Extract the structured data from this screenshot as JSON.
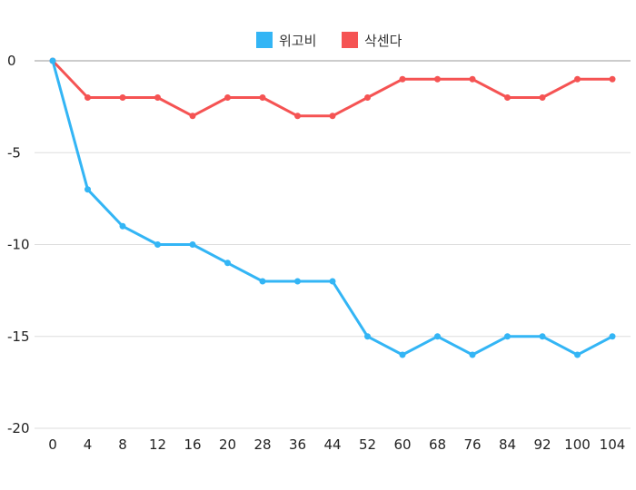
{
  "chart_data": {
    "type": "line",
    "x": [
      0,
      4,
      8,
      12,
      16,
      20,
      28,
      36,
      44,
      52,
      60,
      68,
      76,
      84,
      92,
      100,
      104
    ],
    "ylim": [
      -20,
      0
    ],
    "yticks": [
      0,
      -5,
      -10,
      -15,
      -20
    ],
    "grid": true,
    "legend_position": "top-center",
    "series": [
      {
        "name": "위고비",
        "color": "#33b5f5",
        "values": [
          0,
          -7,
          -9,
          -10,
          -10,
          -11,
          -12,
          -12,
          -12,
          -15,
          -16,
          -15,
          -16,
          -15,
          -15,
          -16,
          -15
        ]
      },
      {
        "name": "삭센다",
        "color": "#f55353",
        "values": [
          0,
          -2,
          -2,
          -2,
          -3,
          -2,
          -2,
          -3,
          -3,
          -2,
          -1,
          -1,
          -1,
          -2,
          -2,
          -1,
          -1
        ]
      }
    ]
  }
}
